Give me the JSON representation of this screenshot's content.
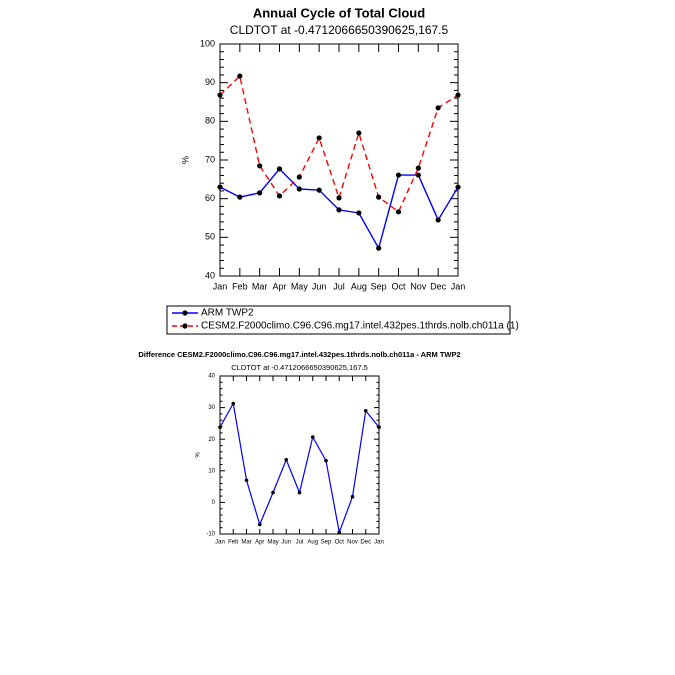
{
  "chart_data": [
    {
      "type": "line",
      "title": "Annual Cycle of Total Cloud",
      "subtitle": "CLDTOT at -0.4712066650390625,167.5",
      "y_label": "%",
      "categories": [
        "Jan",
        "Feb",
        "Mar",
        "Apr",
        "May",
        "Jun",
        "Jul",
        "Aug",
        "Sep",
        "Oct",
        "Nov",
        "Dec",
        "Jan"
      ],
      "series": [
        {
          "name": "ARM TWP2",
          "color": "#0000ff",
          "line_style": "solid",
          "values": [
            63,
            60.4,
            61.5,
            67.7,
            62.5,
            62.2,
            57.1,
            56.3,
            47.2,
            66.1,
            66.1,
            54.5,
            63
          ]
        },
        {
          "name": "CESM2.F2000climo.C96.C96.mg17.intel.432pes.1thrds.nolb.ch011a (1)",
          "color": "#ff0000",
          "line_style": "dashed",
          "values": [
            86.8,
            91.7,
            68.5,
            60.7,
            65.6,
            75.7,
            60.2,
            77,
            60.4,
            56.6,
            67.9,
            83.5,
            86.8
          ]
        }
      ],
      "marker_color": "#000000",
      "ylim": [
        40,
        100
      ],
      "yticks": [
        40,
        50,
        60,
        70,
        80,
        90,
        100
      ],
      "legend": "bottom"
    },
    {
      "type": "line",
      "title": "Difference CESM2.F2000climo.C96.C96.mg17.intel.432pes.1thrds.nolb.ch011a - ARM TWP2",
      "subtitle": "CLDTOT at -0.4712066650390625,167.5",
      "y_label": "%",
      "categories": [
        "Jan",
        "Feb",
        "Mar",
        "Apr",
        "May",
        "Jun",
        "Jul",
        "Aug",
        "Sep",
        "Oct",
        "Nov",
        "Dec",
        "Jan"
      ],
      "values": [
        23.8,
        31.3,
        7,
        -7,
        3.1,
        13.5,
        3.1,
        20.7,
        13.2,
        -9.5,
        1.8,
        29,
        23.8
      ],
      "color": "#0000ff",
      "marker_color": "#000000",
      "ylim": [
        -10,
        40
      ],
      "yticks": [
        -10,
        0,
        10,
        20,
        30,
        40
      ]
    }
  ]
}
